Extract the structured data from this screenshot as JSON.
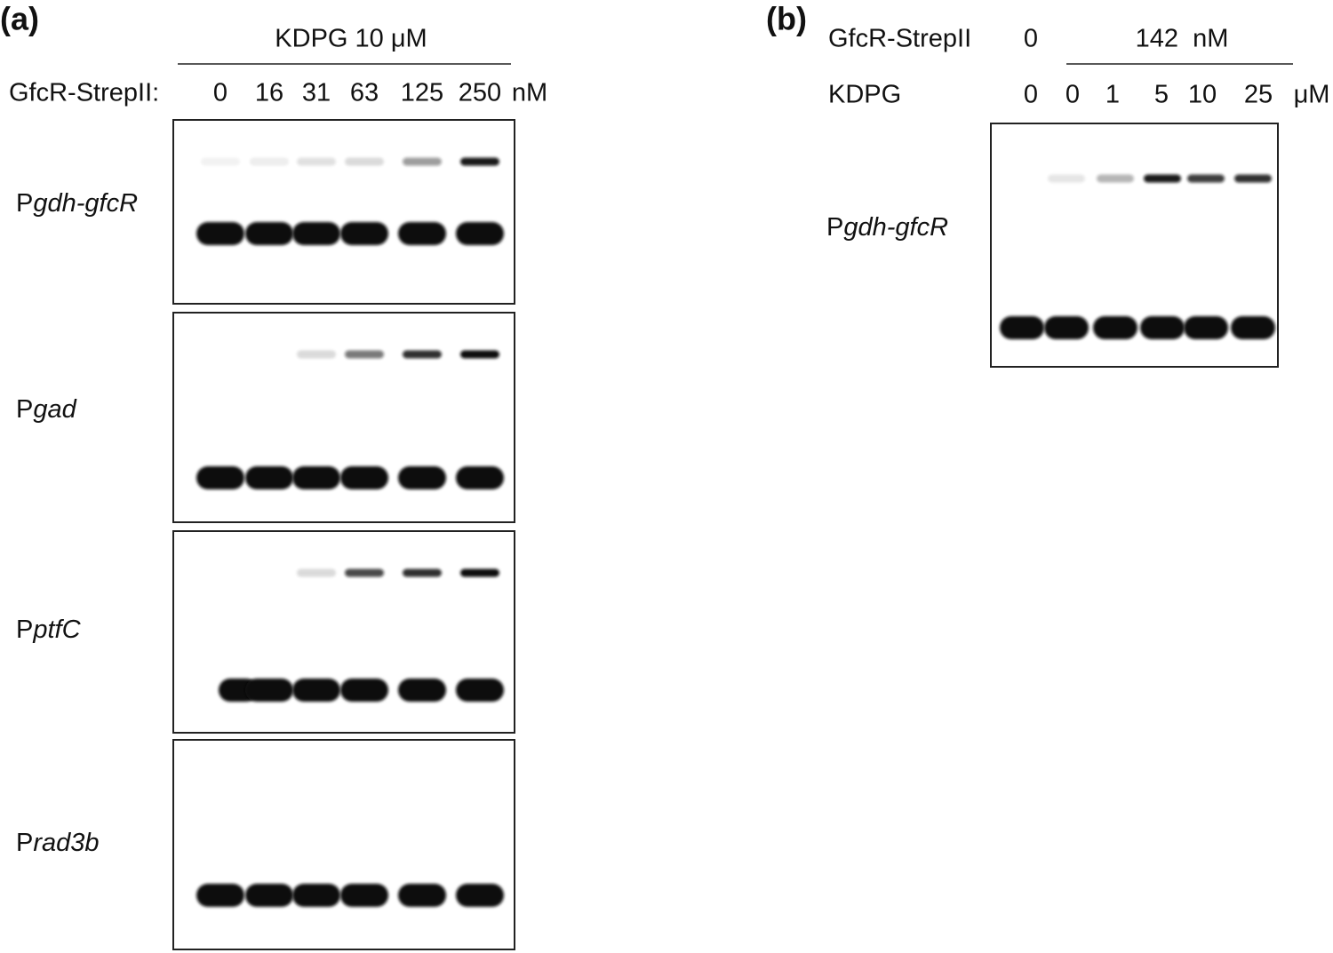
{
  "panel_a": {
    "label": "(a)",
    "treatment": "KDPG 10 μM",
    "row_label": "GfcR-StrepII:",
    "concentrations": [
      "0",
      "16",
      "31",
      "63",
      "125",
      "250"
    ],
    "unit": "nM",
    "gels": [
      {
        "prefix": "P",
        "italic": "gdh-gfcR"
      },
      {
        "prefix": "P",
        "italic": "gad"
      },
      {
        "prefix": "P",
        "italic": "ptfC"
      },
      {
        "prefix": "P",
        "italic": "rad3b"
      }
    ]
  },
  "panel_b": {
    "label": "(b)",
    "row1_label": "GfcR-StrepII",
    "row1_first": "0",
    "row1_group": "142  nM",
    "row2_label": "KDPG",
    "row2_values": [
      "0",
      "0",
      "1",
      "5",
      "10",
      "25"
    ],
    "row2_unit": "μM",
    "gel": {
      "prefix": "P",
      "italic": "gdh-gfcR"
    }
  }
}
